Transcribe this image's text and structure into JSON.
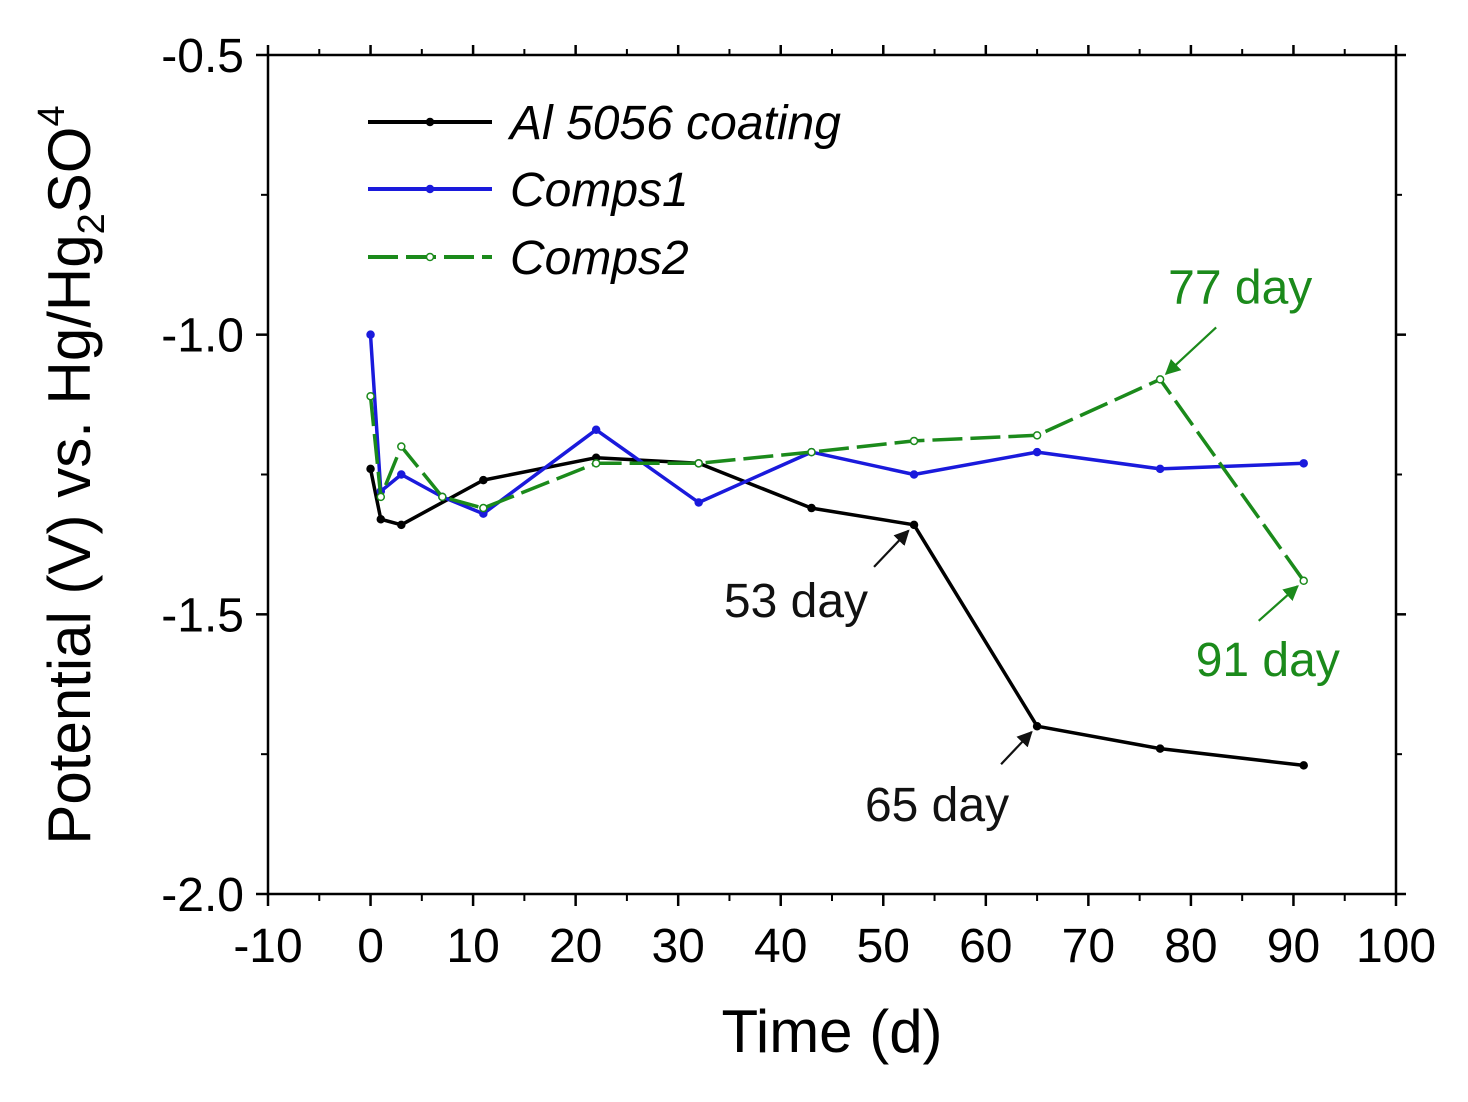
{
  "chart_data": {
    "type": "line",
    "xlabel": "Time (d)",
    "ylabel": {
      "prefix": "Potential (V) vs. Hg/Hg",
      "sub1": "2",
      "mid": "SO",
      "sub2": "4"
    },
    "xlim": [
      -10,
      100
    ],
    "ylim": [
      -2.0,
      -0.5
    ],
    "xticks": [
      -10,
      0,
      10,
      20,
      30,
      40,
      50,
      60,
      70,
      80,
      90,
      100
    ],
    "xtick_labels": [
      "-10",
      "0",
      "10",
      "20",
      "30",
      "40",
      "50",
      "60",
      "70",
      "80",
      "90",
      "100"
    ],
    "yticks": [
      -2.0,
      -1.5,
      -1.0,
      -0.5
    ],
    "ytick_labels": [
      "-2.0",
      "-1.5",
      "-1.0",
      "-0.5"
    ],
    "legend_position": "top-left",
    "series": [
      {
        "name": "Al 5056 coating",
        "color": "#000000",
        "dash": "",
        "x": [
          0,
          1,
          3,
          11,
          22,
          32,
          43,
          53,
          65,
          77,
          91
        ],
        "y": [
          -1.24,
          -1.33,
          -1.34,
          -1.26,
          -1.22,
          -1.23,
          -1.31,
          -1.34,
          -1.7,
          -1.74,
          -1.77
        ]
      },
      {
        "name": "Comps1",
        "color": "#1a1adc",
        "dash": "",
        "x": [
          0,
          1,
          3,
          7,
          11,
          22,
          32,
          43,
          53,
          65,
          77,
          91
        ],
        "y": [
          -1.0,
          -1.28,
          -1.25,
          -1.29,
          -1.32,
          -1.17,
          -1.3,
          -1.21,
          -1.25,
          -1.21,
          -1.24,
          -1.23
        ]
      },
      {
        "name": "Comps2",
        "color": "#1b8a1b",
        "dash": "30 8",
        "x": [
          0,
          1,
          3,
          7,
          11,
          22,
          32,
          43,
          53,
          65,
          77,
          91
        ],
        "y": [
          -1.11,
          -1.29,
          -1.2,
          -1.29,
          -1.31,
          -1.23,
          -1.23,
          -1.21,
          -1.19,
          -1.18,
          -1.08,
          -1.44
        ]
      }
    ],
    "annotations": [
      {
        "text": "77 day",
        "color": "#1b8a1b",
        "x": 77,
        "y": -1.08
      },
      {
        "text": "91 day",
        "color": "#1b8a1b",
        "x": 91,
        "y": -1.44
      },
      {
        "text": "53 day",
        "color": "#111111",
        "x": 53,
        "y": -1.34
      },
      {
        "text": "65 day",
        "color": "#111111",
        "x": 65,
        "y": -1.7
      }
    ]
  }
}
